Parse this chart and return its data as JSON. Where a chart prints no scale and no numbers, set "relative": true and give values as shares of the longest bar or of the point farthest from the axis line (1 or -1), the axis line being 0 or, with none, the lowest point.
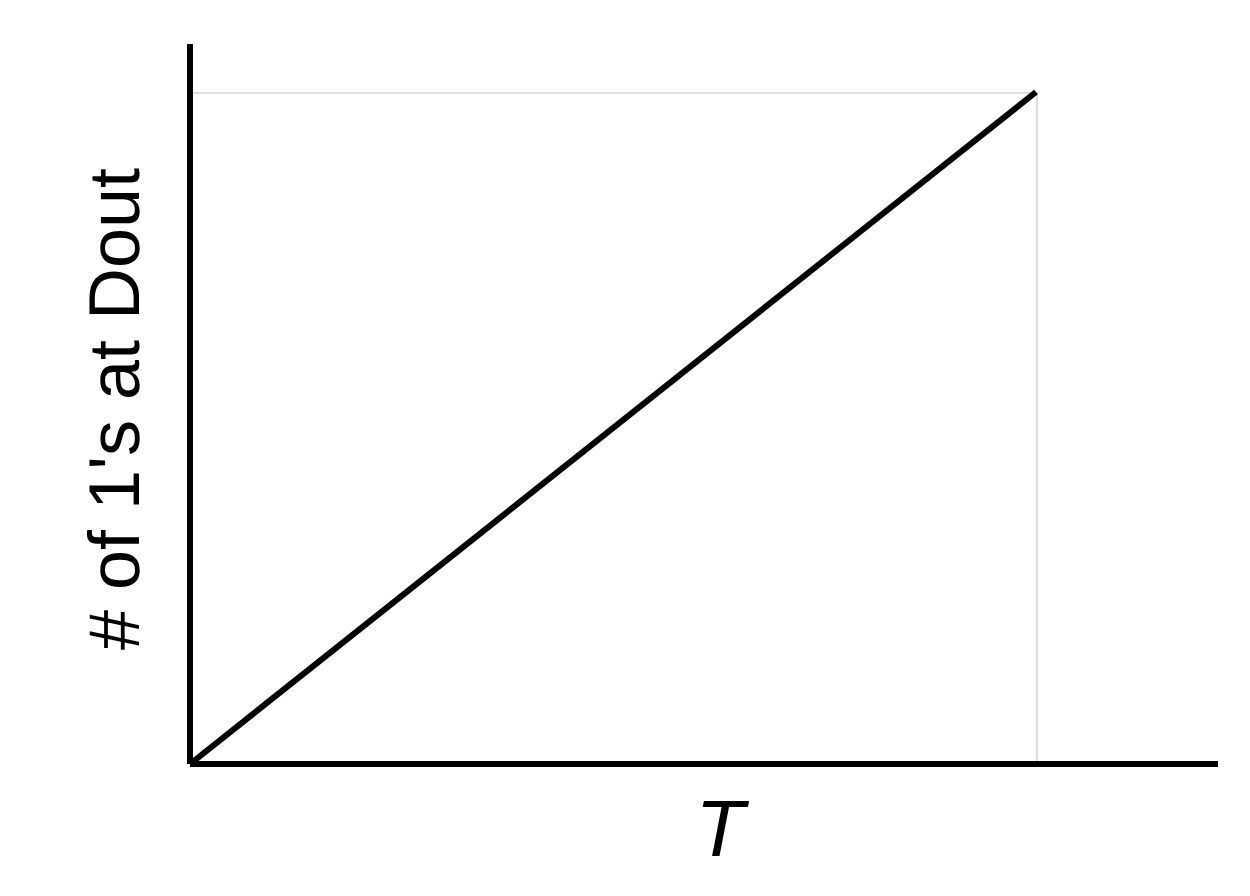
{
  "chart_data": {
    "type": "line",
    "relative": true,
    "xlabel": "T",
    "ylabel": "# of 1's at Dout",
    "categories": [
      null,
      null
    ],
    "series": [
      {
        "color": "#000000",
        "values": [
          0,
          1
        ]
      }
    ],
    "marker": "none",
    "line_style": "solid"
  }
}
